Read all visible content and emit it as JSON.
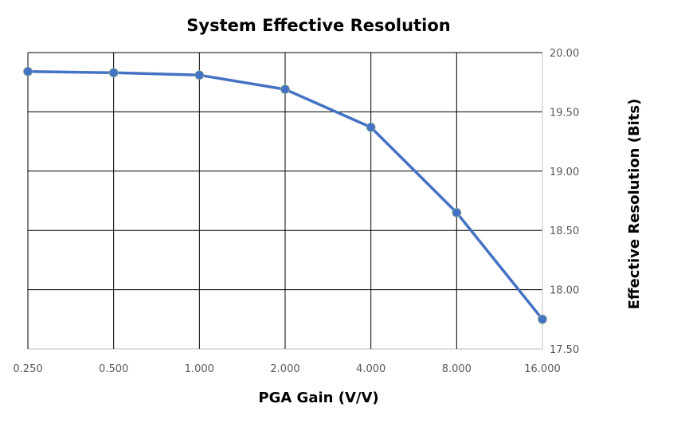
{
  "chart_data": {
    "type": "line",
    "title": "System Effective Resolution",
    "xlabel": "PGA Gain (V/V)",
    "ylabel": "Effective Resolution (Bits)",
    "x_scale": "log2 (categorical ticks)",
    "categories": [
      "0.250",
      "0.500",
      "1.000",
      "2.000",
      "4.000",
      "8.000",
      "16.000"
    ],
    "x": [
      0.25,
      0.5,
      1,
      2,
      4,
      8,
      16
    ],
    "values": [
      19.84,
      19.83,
      19.81,
      19.69,
      19.37,
      18.65,
      17.75
    ],
    "ylim": [
      17.5,
      20.0
    ],
    "yticks": [
      "17.50",
      "18.00",
      "18.50",
      "19.00",
      "19.50",
      "20.00"
    ],
    "y_axis_side": "right",
    "grid": true,
    "legend": "none",
    "colors": {
      "series": "#4472C4",
      "grid": "#000000",
      "tick_text": "#595959"
    }
  }
}
